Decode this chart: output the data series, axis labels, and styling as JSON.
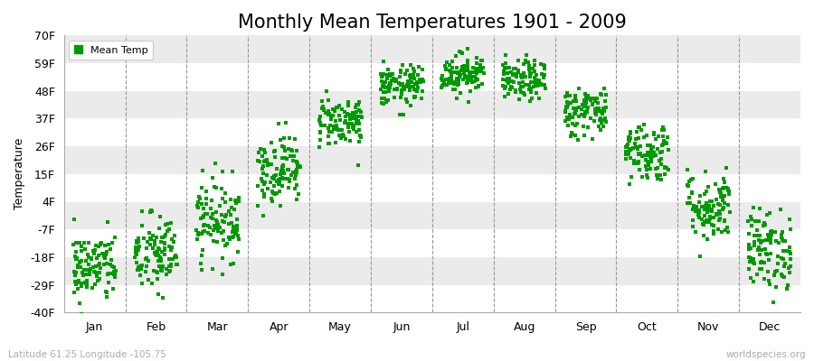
{
  "title": "Monthly Mean Temperatures 1901 - 2009",
  "ylabel": "Temperature",
  "subtitle": "Latitude 61.25 Longitude -105.75",
  "watermark": "worldspecies.org",
  "yticks": [
    -40,
    -29,
    -18,
    -7,
    4,
    15,
    26,
    37,
    48,
    59,
    70
  ],
  "ytick_labels": [
    "-40F",
    "-29F",
    "-18F",
    "-7F",
    "4F",
    "15F",
    "26F",
    "37F",
    "48F",
    "59F",
    "70F"
  ],
  "ylim": [
    -40,
    70
  ],
  "months": [
    "Jan",
    "Feb",
    "Mar",
    "Apr",
    "May",
    "Jun",
    "Jul",
    "Aug",
    "Sep",
    "Oct",
    "Nov",
    "Dec"
  ],
  "marker_color": "#009900",
  "bg_color": "#ffffff",
  "band_colors": [
    "#ffffff",
    "#ebebeb",
    "#ffffff",
    "#ebebeb",
    "#ffffff",
    "#ebebeb",
    "#ffffff",
    "#ebebeb",
    "#ffffff",
    "#ebebeb"
  ],
  "title_fontsize": 15,
  "label_fontsize": 9,
  "monthly_mean_F": [
    -22,
    -17,
    -3,
    17,
    36,
    50,
    55,
    52,
    40,
    24,
    2,
    -15
  ],
  "monthly_std_F": [
    7,
    8,
    8,
    7,
    5,
    4,
    4,
    4,
    5,
    6,
    7,
    8
  ],
  "n_years": 109,
  "random_seed": 42
}
